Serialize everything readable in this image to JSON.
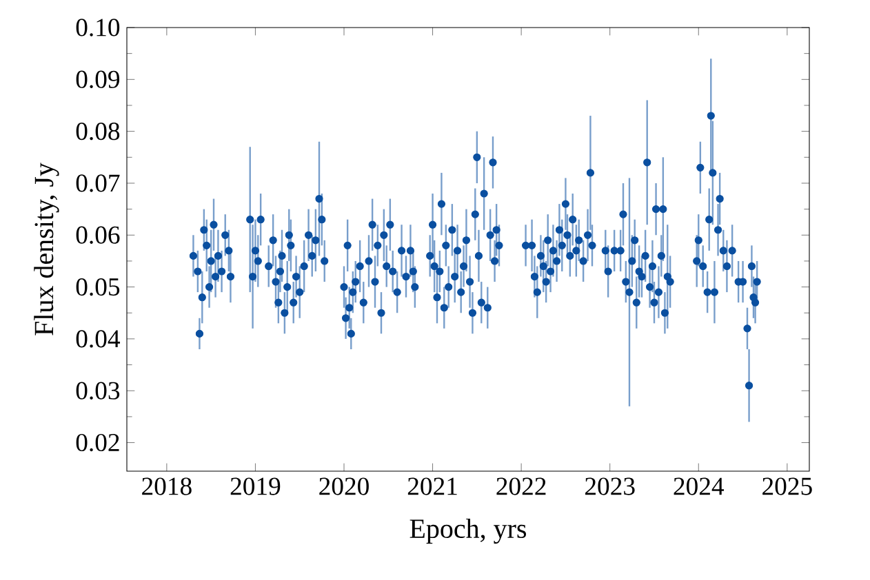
{
  "chart_data": {
    "type": "scatter",
    "xlabel": "Epoch, yrs",
    "ylabel": "Flux density, Jy",
    "color": "#0a4fa0",
    "marker": "circle",
    "xlim": [
      2017.55,
      2025.25
    ],
    "ylim": [
      0.0145,
      0.1
    ],
    "xticks": [
      2018,
      2019,
      2020,
      2021,
      2022,
      2023,
      2024,
      2025
    ],
    "yticks": [
      0.02,
      0.03,
      0.04,
      0.05,
      0.06,
      0.07,
      0.08,
      0.09,
      {
        "value": 0.1,
        "label": "0.10"
      }
    ],
    "x": [
      2018.3,
      2018.35,
      2018.37,
      2018.4,
      2018.42,
      2018.45,
      2018.48,
      2018.5,
      2018.53,
      2018.55,
      2018.58,
      2018.62,
      2018.66,
      2018.7,
      2018.72,
      2018.94,
      2018.97,
      2019.0,
      2019.03,
      2019.06,
      2019.15,
      2019.2,
      2019.23,
      2019.26,
      2019.28,
      2019.3,
      2019.33,
      2019.36,
      2019.38,
      2019.4,
      2019.43,
      2019.46,
      2019.5,
      2019.55,
      2019.6,
      2019.64,
      2019.68,
      2019.72,
      2019.75,
      2019.78,
      2020.0,
      2020.02,
      2020.04,
      2020.06,
      2020.08,
      2020.1,
      2020.13,
      2020.18,
      2020.22,
      2020.28,
      2020.32,
      2020.35,
      2020.38,
      2020.42,
      2020.45,
      2020.48,
      2020.52,
      2020.55,
      2020.6,
      2020.65,
      2020.7,
      2020.75,
      2020.78,
      2020.8,
      2020.97,
      2021.0,
      2021.02,
      2021.05,
      2021.08,
      2021.1,
      2021.13,
      2021.15,
      2021.18,
      2021.22,
      2021.25,
      2021.28,
      2021.32,
      2021.35,
      2021.38,
      2021.42,
      2021.45,
      2021.48,
      2021.5,
      2021.52,
      2021.55,
      2021.58,
      2021.62,
      2021.65,
      2021.68,
      2021.7,
      2021.72,
      2021.75,
      2022.05,
      2022.12,
      2022.15,
      2022.18,
      2022.22,
      2022.25,
      2022.28,
      2022.3,
      2022.33,
      2022.36,
      2022.4,
      2022.43,
      2022.46,
      2022.5,
      2022.52,
      2022.55,
      2022.58,
      2022.62,
      2022.65,
      2022.7,
      2022.75,
      2022.78,
      2022.8,
      2022.95,
      2022.98,
      2023.05,
      2023.12,
      2023.15,
      2023.18,
      2023.22,
      2023.25,
      2023.28,
      2023.3,
      2023.33,
      2023.36,
      2023.4,
      2023.42,
      2023.45,
      2023.48,
      2023.5,
      2023.52,
      2023.55,
      2023.58,
      2023.6,
      2023.62,
      2023.65,
      2023.68,
      2023.98,
      2024.0,
      2024.02,
      2024.05,
      2024.1,
      2024.12,
      2024.14,
      2024.16,
      2024.18,
      2024.22,
      2024.24,
      2024.28,
      2024.32,
      2024.38,
      2024.45,
      2024.5,
      2024.55,
      2024.57,
      2024.6,
      2024.62,
      2024.64,
      2024.66
    ],
    "values": [
      0.056,
      0.053,
      0.041,
      0.048,
      0.061,
      0.058,
      0.05,
      0.055,
      0.062,
      0.052,
      0.056,
      0.053,
      0.06,
      0.057,
      0.052,
      0.063,
      0.052,
      0.057,
      0.055,
      0.063,
      0.054,
      0.059,
      0.051,
      0.047,
      0.053,
      0.056,
      0.045,
      0.05,
      0.06,
      0.058,
      0.047,
      0.052,
      0.049,
      0.054,
      0.06,
      0.056,
      0.059,
      0.067,
      0.063,
      0.055,
      0.05,
      0.044,
      0.058,
      0.046,
      0.041,
      0.049,
      0.051,
      0.054,
      0.047,
      0.055,
      0.062,
      0.051,
      0.058,
      0.045,
      0.06,
      0.054,
      0.062,
      0.053,
      0.049,
      0.057,
      0.052,
      0.057,
      0.053,
      0.05,
      0.056,
      0.062,
      0.054,
      0.048,
      0.053,
      0.066,
      0.046,
      0.058,
      0.05,
      0.061,
      0.052,
      0.057,
      0.049,
      0.054,
      0.059,
      0.051,
      0.045,
      0.064,
      0.075,
      0.056,
      0.047,
      0.068,
      0.046,
      0.06,
      0.074,
      0.055,
      0.061,
      0.058,
      0.058,
      0.058,
      0.052,
      0.049,
      0.056,
      0.054,
      0.051,
      0.059,
      0.053,
      0.057,
      0.055,
      0.061,
      0.058,
      0.066,
      0.06,
      0.056,
      0.063,
      0.057,
      0.059,
      0.055,
      0.06,
      0.072,
      0.058,
      0.057,
      0.053,
      0.057,
      0.057,
      0.064,
      0.051,
      0.049,
      0.055,
      0.059,
      0.047,
      0.053,
      0.052,
      0.056,
      0.074,
      0.05,
      0.054,
      0.047,
      0.065,
      0.049,
      0.056,
      0.065,
      0.045,
      0.052,
      0.051,
      0.055,
      0.059,
      0.073,
      0.054,
      0.049,
      0.063,
      0.083,
      0.072,
      0.049,
      0.061,
      0.067,
      0.057,
      0.054,
      0.057,
      0.051,
      0.051,
      0.042,
      0.031,
      0.054,
      0.048,
      0.047,
      0.051
    ],
    "errors": [
      0.004,
      0.004,
      0.003,
      0.005,
      0.004,
      0.005,
      0.004,
      0.006,
      0.005,
      0.004,
      0.005,
      0.004,
      0.004,
      0.004,
      0.005,
      0.014,
      0.01,
      0.006,
      0.005,
      0.005,
      0.004,
      0.005,
      0.005,
      0.004,
      0.004,
      0.005,
      0.004,
      0.005,
      0.005,
      0.005,
      0.004,
      0.004,
      0.005,
      0.005,
      0.005,
      0.004,
      0.006,
      0.011,
      0.005,
      0.004,
      0.004,
      0.004,
      0.005,
      0.004,
      0.003,
      0.004,
      0.004,
      0.005,
      0.004,
      0.005,
      0.005,
      0.005,
      0.004,
      0.004,
      0.005,
      0.004,
      0.005,
      0.004,
      0.004,
      0.005,
      0.004,
      0.005,
      0.004,
      0.004,
      0.004,
      0.006,
      0.005,
      0.005,
      0.004,
      0.006,
      0.004,
      0.004,
      0.004,
      0.005,
      0.005,
      0.005,
      0.004,
      0.004,
      0.006,
      0.005,
      0.004,
      0.005,
      0.005,
      0.005,
      0.004,
      0.007,
      0.004,
      0.005,
      0.005,
      0.004,
      0.005,
      0.004,
      0.004,
      0.005,
      0.004,
      0.005,
      0.004,
      0.005,
      0.004,
      0.005,
      0.004,
      0.005,
      0.004,
      0.005,
      0.005,
      0.005,
      0.004,
      0.004,
      0.005,
      0.005,
      0.004,
      0.004,
      0.005,
      0.011,
      0.004,
      0.004,
      0.005,
      0.004,
      0.004,
      0.006,
      0.004,
      0.022,
      0.005,
      0.004,
      0.005,
      0.005,
      0.004,
      0.005,
      0.012,
      0.004,
      0.005,
      0.004,
      0.005,
      0.005,
      0.004,
      0.01,
      0.004,
      0.01,
      0.005,
      0.005,
      0.005,
      0.005,
      0.004,
      0.004,
      0.006,
      0.011,
      0.01,
      0.006,
      0.005,
      0.005,
      0.004,
      0.005,
      0.005,
      0.004,
      0.004,
      0.004,
      0.007,
      0.004,
      0.004,
      0.004,
      0.004
    ]
  }
}
